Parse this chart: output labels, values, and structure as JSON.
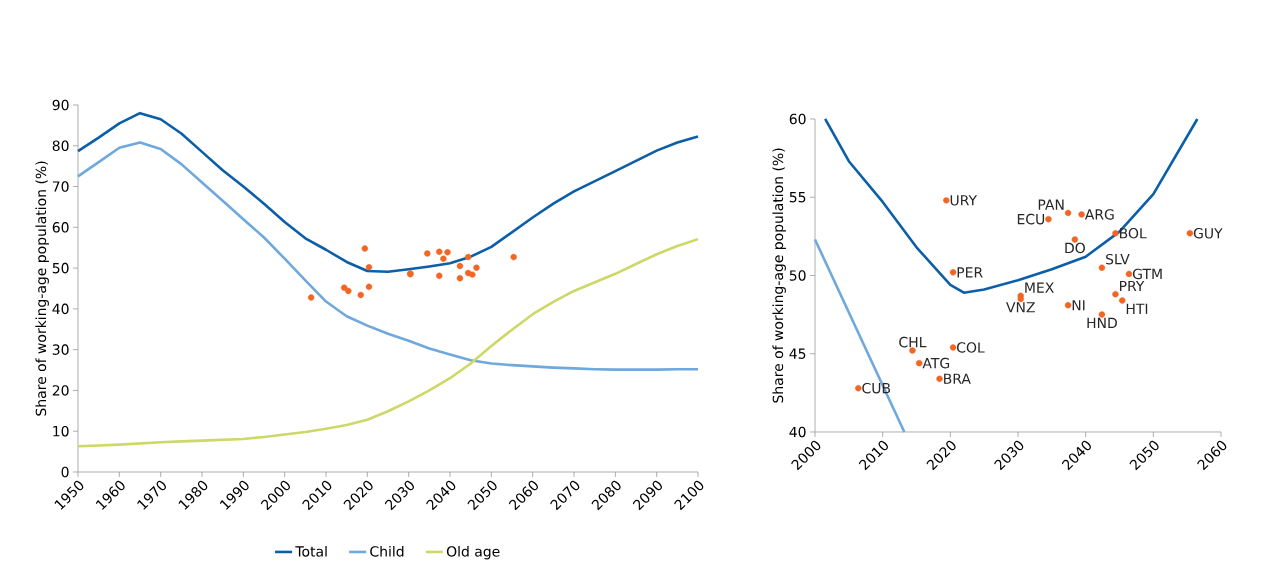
{
  "chart_data": [
    {
      "type": "line",
      "ylabel": "Share of working-age population (%)",
      "xlim": [
        1950,
        2100
      ],
      "ylim": [
        0,
        90
      ],
      "xticks": [
        1950,
        1960,
        1970,
        1980,
        1990,
        2000,
        2010,
        2020,
        2030,
        2040,
        2050,
        2060,
        2070,
        2080,
        2090,
        2100
      ],
      "yticks": [
        0,
        10,
        20,
        30,
        40,
        50,
        60,
        70,
        80,
        90
      ],
      "legend": "bottom",
      "marker": "none",
      "line_style": "solid",
      "series": [
        {
          "name": "Total",
          "color": "#0b5ea8",
          "x": [
            1950,
            1955,
            1960,
            1965,
            1970,
            1975,
            1980,
            1985,
            1990,
            1995,
            2000,
            2005,
            2010,
            2015,
            2020,
            2025,
            2030,
            2035,
            2040,
            2045,
            2050,
            2055,
            2060,
            2065,
            2070,
            2075,
            2080,
            2085,
            2090,
            2095,
            2100
          ],
          "values": [
            78.7,
            82,
            85.5,
            88,
            86.5,
            83,
            78.5,
            74,
            70,
            65.8,
            61.3,
            57.3,
            54.5,
            51.5,
            49.3,
            49.1,
            49.7,
            50.4,
            51.2,
            52.8,
            55.2,
            58.8,
            62.4,
            65.8,
            68.8,
            71.3,
            73.8,
            76.3,
            78.8,
            80.8,
            82.3
          ]
        },
        {
          "name": "Child",
          "color": "#6fa8dc",
          "x": [
            1950,
            1955,
            1960,
            1965,
            1970,
            1975,
            1980,
            1985,
            1990,
            1995,
            2000,
            2005,
            2010,
            2015,
            2020,
            2025,
            2030,
            2035,
            2040,
            2045,
            2050,
            2055,
            2060,
            2065,
            2070,
            2075,
            2080,
            2085,
            2090,
            2095,
            2100
          ],
          "values": [
            72.5,
            76,
            79.5,
            80.8,
            79.2,
            75.5,
            71,
            66.5,
            62,
            57.5,
            52.3,
            47,
            41.8,
            38.2,
            35.9,
            33.9,
            32.2,
            30.3,
            28.8,
            27.4,
            26.6,
            26.2,
            25.9,
            25.6,
            25.4,
            25.2,
            25.1,
            25.1,
            25.1,
            25.2,
            25.2
          ]
        },
        {
          "name": "Old age",
          "color": "#cdd867",
          "x": [
            1950,
            1955,
            1960,
            1965,
            1970,
            1975,
            1980,
            1985,
            1990,
            1995,
            2000,
            2005,
            2010,
            2015,
            2020,
            2025,
            2030,
            2035,
            2040,
            2045,
            2050,
            2055,
            2060,
            2065,
            2070,
            2075,
            2080,
            2085,
            2090,
            2095,
            2100
          ],
          "values": [
            6.3,
            6.5,
            6.7,
            7.0,
            7.3,
            7.5,
            7.7,
            7.9,
            8.1,
            8.6,
            9.2,
            9.8,
            10.6,
            11.5,
            12.8,
            14.9,
            17.3,
            20,
            23,
            26.6,
            30.9,
            34.9,
            38.7,
            41.7,
            44.4,
            46.5,
            48.6,
            51,
            53.4,
            55.4,
            57.1
          ]
        },
        {
          "type": "scatter",
          "marker": "circle",
          "color": "#f26522",
          "x": [
            2019.4,
            2037.4,
            2039.4,
            2034.5,
            2038.4,
            2044.4,
            2055.4,
            2042.4,
            2020.4,
            2046.4,
            2030.4,
            2030.4,
            2044.4,
            2045.4,
            2037.4,
            2042.4,
            2014.4,
            2020.4,
            2015.4,
            2018.4,
            2006.4
          ],
          "values": [
            54.8,
            54.0,
            53.9,
            53.6,
            52.3,
            52.7,
            52.7,
            50.5,
            50.2,
            50.1,
            48.7,
            48.5,
            48.8,
            48.4,
            48.1,
            47.5,
            45.2,
            45.4,
            44.4,
            43.4,
            42.8
          ]
        }
      ]
    },
    {
      "type": "line",
      "ylabel": "Share of working-age population (%)",
      "xlim": [
        2000,
        2060
      ],
      "ylim": [
        40,
        60
      ],
      "xticks": [
        2000,
        2010,
        2020,
        2030,
        2040,
        2050,
        2060
      ],
      "yticks": [
        40,
        45,
        50,
        55,
        60
      ],
      "marker": "none",
      "line_style": "solid",
      "series": [
        {
          "color": "#0b5ea8",
          "x": [
            2001.5,
            2005,
            2010,
            2015,
            2020,
            2022,
            2025,
            2030,
            2035,
            2040,
            2045,
            2050,
            2056.5
          ],
          "values": [
            60,
            57.3,
            54.7,
            51.8,
            49.4,
            48.9,
            49.1,
            49.7,
            50.4,
            51.2,
            52.8,
            55.2,
            60
          ]
        },
        {
          "color": "#6fa8dc",
          "x": [
            2000,
            2013.2
          ],
          "values": [
            52.3,
            40
          ]
        },
        {
          "type": "scatter",
          "marker": "circle",
          "color": "#f26522",
          "x": [
            2019.4,
            2037.4,
            2039.4,
            2034.5,
            2038.4,
            2044.4,
            2055.4,
            2042.4,
            2020.4,
            2046.4,
            2030.4,
            2030.4,
            2044.4,
            2045.4,
            2037.4,
            2042.4,
            2014.4,
            2020.4,
            2015.4,
            2018.4,
            2006.4
          ],
          "values": [
            54.8,
            54.0,
            53.9,
            53.6,
            52.3,
            52.7,
            52.7,
            50.5,
            50.2,
            50.1,
            48.7,
            48.5,
            48.8,
            48.4,
            48.1,
            47.5,
            45.2,
            45.4,
            44.4,
            43.4,
            42.8
          ]
        }
      ],
      "annotations": [
        {
          "text": "URY",
          "x": 2019.4,
          "y": 54.8
        },
        {
          "text": "PAN",
          "x": 2037.4,
          "y": 54.0
        },
        {
          "text": "ARG",
          "x": 2039.4,
          "y": 53.9
        },
        {
          "text": "ECU",
          "x": 2034.5,
          "y": 53.6
        },
        {
          "text": "DO",
          "x": 2038.4,
          "y": 52.3
        },
        {
          "text": "BOL",
          "x": 2044.4,
          "y": 52.7
        },
        {
          "text": "GUY",
          "x": 2055.4,
          "y": 52.7
        },
        {
          "text": "SLV",
          "x": 2042.4,
          "y": 50.5
        },
        {
          "text": "PER",
          "x": 2020.4,
          "y": 50.2
        },
        {
          "text": "GTM",
          "x": 2046.4,
          "y": 50.1
        },
        {
          "text": "MEX",
          "x": 2030.4,
          "y": 48.7
        },
        {
          "text": "VNZ",
          "x": 2030.4,
          "y": 48.5
        },
        {
          "text": "PRY",
          "x": 2044.4,
          "y": 48.8
        },
        {
          "text": "HTI",
          "x": 2045.4,
          "y": 48.4
        },
        {
          "text": "NI",
          "x": 2037.4,
          "y": 48.1
        },
        {
          "text": "HND",
          "x": 2042.4,
          "y": 47.5
        },
        {
          "text": "CHL",
          "x": 2014.4,
          "y": 45.2
        },
        {
          "text": "COL",
          "x": 2020.4,
          "y": 45.4
        },
        {
          "text": "ATG",
          "x": 2015.4,
          "y": 44.4
        },
        {
          "text": "BRA",
          "x": 2018.4,
          "y": 43.4
        },
        {
          "text": "CUB",
          "x": 2006.4,
          "y": 42.8
        }
      ]
    }
  ]
}
